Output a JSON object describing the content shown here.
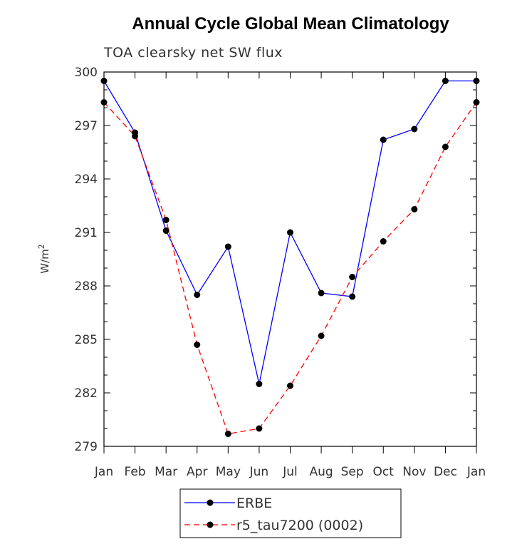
{
  "chart_data": {
    "type": "line",
    "title": "Annual Cycle Global Mean Climatology",
    "subtitle": "TOA clearsky net SW flux",
    "ylabel": "W/m",
    "ylabel_superscript": "2",
    "xlabel": "",
    "categories": [
      "Jan",
      "Feb",
      "Mar",
      "Apr",
      "May",
      "Jun",
      "Jul",
      "Aug",
      "Sep",
      "Oct",
      "Nov",
      "Dec",
      "Jan"
    ],
    "ylim": [
      279,
      300
    ],
    "yticks": [
      279,
      282,
      285,
      288,
      291,
      294,
      297,
      300
    ],
    "series": [
      {
        "name": "ERBE",
        "color": "#0000ff",
        "dash": "solid",
        "values": [
          299.5,
          296.6,
          291.1,
          287.5,
          290.2,
          282.5,
          291.0,
          287.6,
          287.4,
          296.2,
          296.8,
          299.5,
          299.5
        ]
      },
      {
        "name": "r5_tau7200 (0002)",
        "color": "#ff0000",
        "dash": "dashed",
        "values": [
          298.3,
          296.4,
          291.7,
          284.7,
          279.7,
          280.0,
          282.4,
          285.2,
          288.5,
          290.5,
          292.3,
          295.8,
          298.3
        ]
      }
    ],
    "legend": [
      "ERBE",
      "r5_tau7200 (0002)"
    ]
  }
}
